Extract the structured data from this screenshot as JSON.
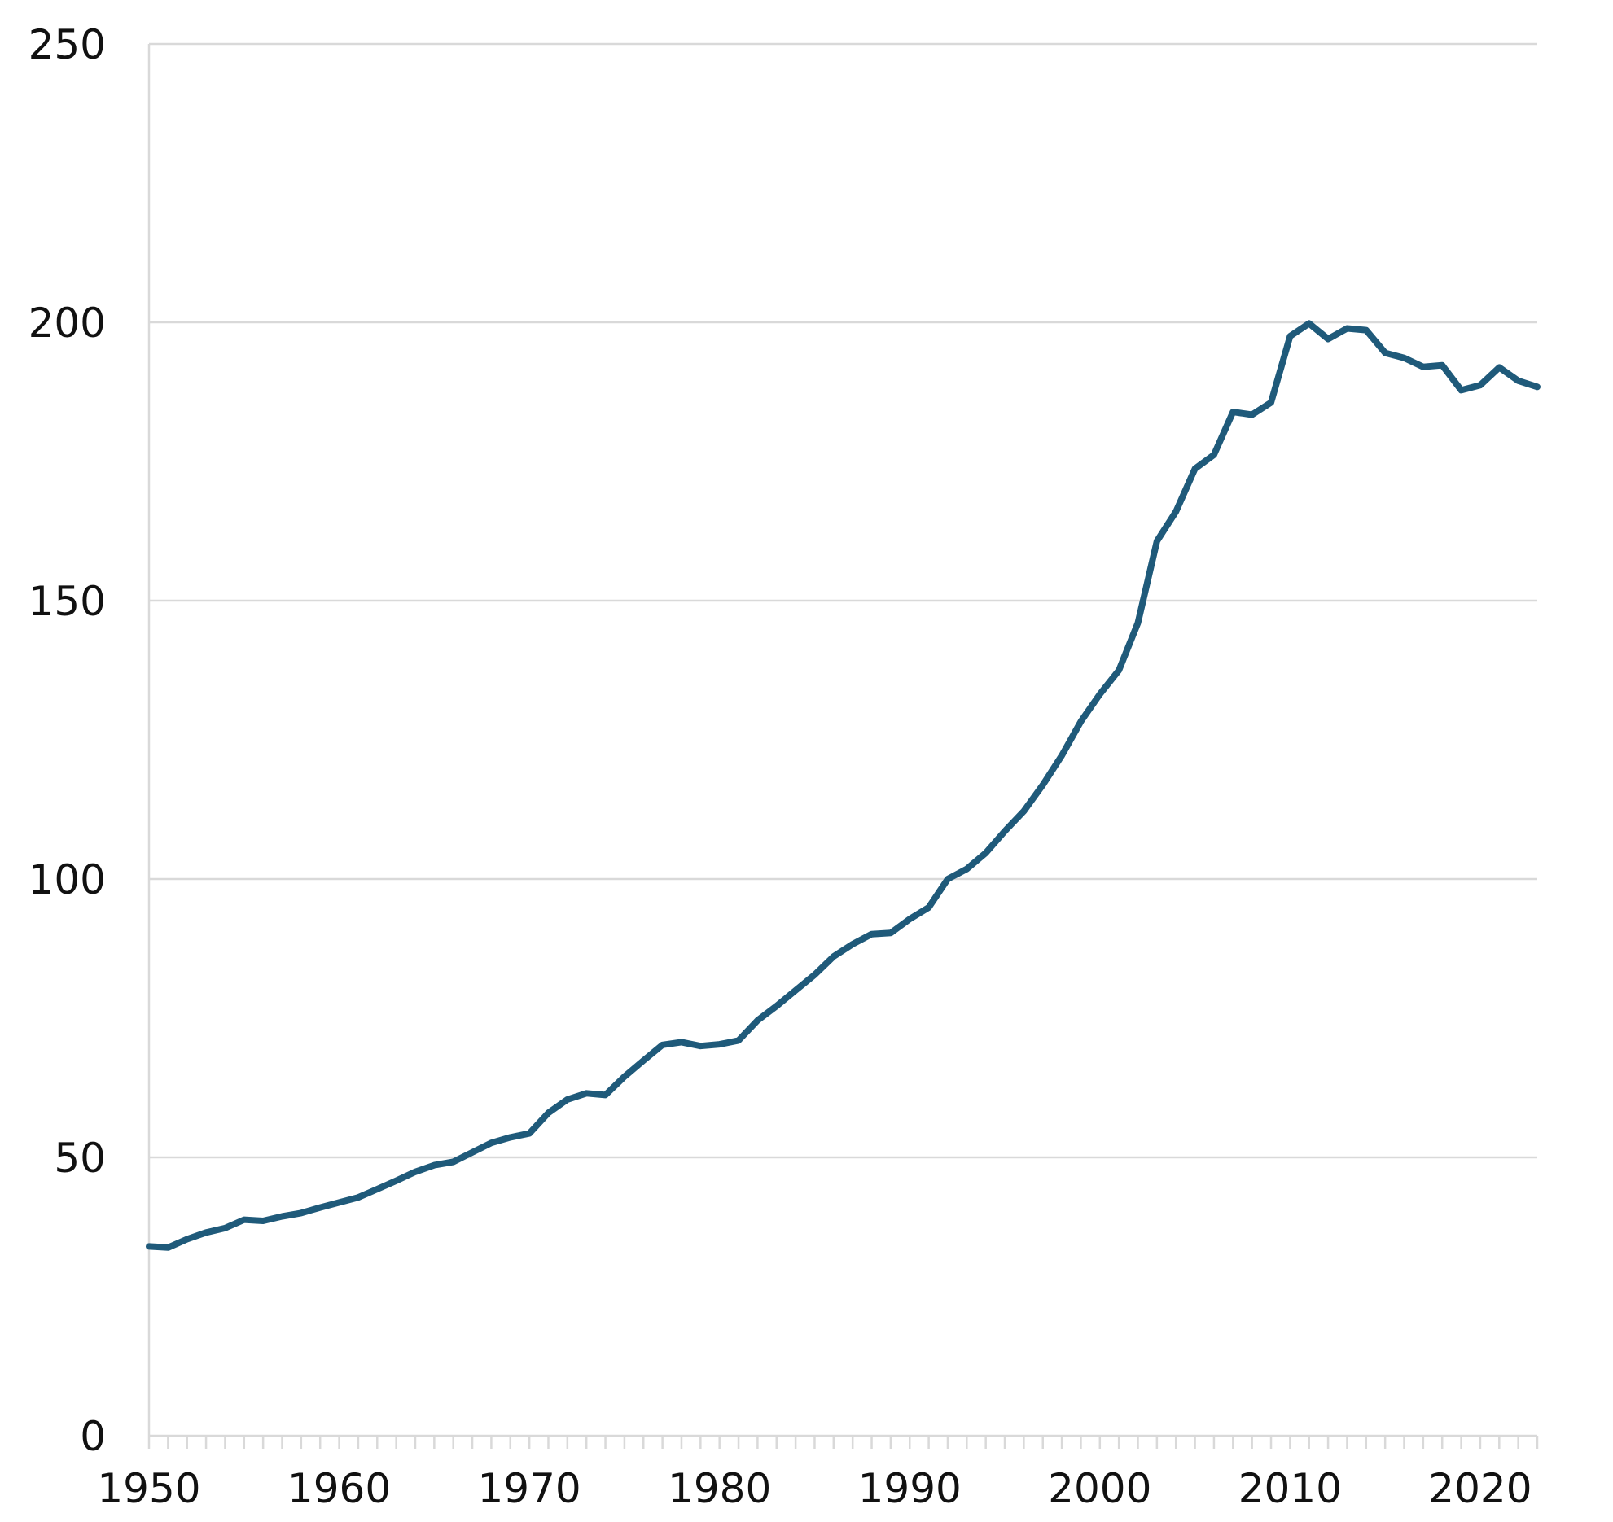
{
  "chart_data": {
    "type": "line",
    "title": "",
    "xlabel": "",
    "ylabel": "",
    "xlim": [
      1950,
      2023
    ],
    "ylim": [
      0,
      250
    ],
    "y_ticks": [
      0,
      50,
      100,
      150,
      200,
      250
    ],
    "x_ticks": [
      1950,
      1960,
      1970,
      1980,
      1990,
      2000,
      2010,
      2020
    ],
    "grid": "horizontal",
    "legend": "none",
    "line_color": "#1f5a7a",
    "grid_color": "#d9d9d9",
    "x": [
      1950,
      1951,
      1952,
      1953,
      1954,
      1955,
      1956,
      1957,
      1958,
      1959,
      1960,
      1961,
      1962,
      1963,
      1964,
      1965,
      1966,
      1967,
      1968,
      1969,
      1970,
      1971,
      1972,
      1973,
      1974,
      1975,
      1976,
      1977,
      1978,
      1979,
      1980,
      1981,
      1982,
      1983,
      1984,
      1985,
      1986,
      1987,
      1988,
      1989,
      1990,
      1991,
      1992,
      1993,
      1994,
      1995,
      1996,
      1997,
      1998,
      1999,
      2000,
      2001,
      2002,
      2003,
      2004,
      2005,
      2006,
      2007,
      2008,
      2009,
      2010,
      2011,
      2012,
      2013,
      2014,
      2015,
      2016,
      2017,
      2018,
      2019,
      2020,
      2021,
      2022,
      2023
    ],
    "values": [
      34.0,
      33.8,
      35.3,
      36.5,
      37.3,
      38.8,
      38.6,
      39.4,
      40.0,
      41.0,
      41.9,
      42.8,
      44.3,
      45.8,
      47.4,
      48.6,
      49.2,
      50.9,
      52.6,
      53.6,
      54.3,
      58.0,
      60.4,
      61.5,
      61.2,
      64.5,
      67.4,
      70.2,
      70.7,
      70.0,
      70.3,
      71.0,
      74.6,
      77.2,
      80.0,
      82.8,
      86.1,
      88.3,
      90.1,
      90.3,
      92.8,
      94.9,
      100.0,
      101.8,
      104.7,
      108.6,
      112.2,
      116.9,
      122.2,
      128.3,
      133.2,
      137.5,
      146.0,
      160.7,
      166.0,
      173.7,
      176.2,
      183.9,
      183.4,
      185.6,
      197.5,
      199.8,
      197.0,
      198.9,
      198.6,
      194.5,
      193.6,
      192.0,
      192.3,
      187.8,
      188.7,
      191.9,
      189.5,
      188.4
    ]
  }
}
